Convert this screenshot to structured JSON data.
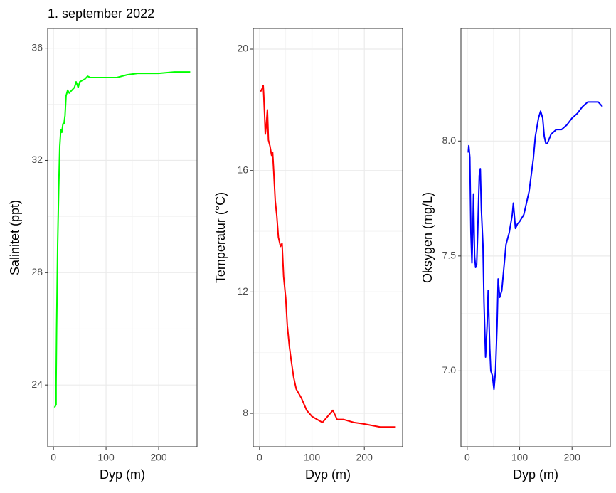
{
  "chart_data": [
    {
      "type": "line",
      "title": "1. september 2022",
      "x_label": "Dyp (m)",
      "y_label": "Salinitet (ppt)",
      "color": "#00ff00",
      "x": [
        2,
        5,
        5,
        6,
        7,
        8,
        10,
        12,
        14,
        16,
        18,
        20,
        22,
        24,
        27,
        30,
        35,
        40,
        43,
        47,
        50,
        55,
        60,
        65,
        70,
        100,
        120,
        140,
        160,
        200,
        230,
        260
      ],
      "values": [
        23.2,
        23.3,
        24,
        26,
        27.5,
        29,
        31,
        32.5,
        33.1,
        33,
        33.3,
        33.3,
        33.6,
        34.3,
        34.5,
        34.4,
        34.5,
        34.6,
        34.8,
        34.6,
        34.8,
        34.85,
        34.9,
        35,
        34.95,
        34.95,
        34.95,
        35.05,
        35.1,
        35.1,
        35.15,
        35.15
      ],
      "xlim": [
        -11,
        273
      ],
      "xticks": [
        0,
        100,
        200
      ],
      "ylim": [
        21.8,
        36.7
      ],
      "yticks": [
        24,
        28,
        32,
        36
      ],
      "grid": true
    },
    {
      "type": "line",
      "x_label": "Dyp (m)",
      "y_label": "Temperatur (°C)",
      "color": "#ff0000",
      "x": [
        2,
        5,
        7,
        8,
        10,
        11,
        13,
        15,
        17,
        20,
        23,
        25,
        27,
        30,
        33,
        36,
        40,
        43,
        46,
        50,
        53,
        57,
        60,
        65,
        70,
        80,
        90,
        100,
        110,
        120,
        130,
        140,
        148,
        160,
        180,
        200,
        230,
        260
      ],
      "values": [
        18.6,
        18.7,
        18.8,
        18.5,
        17.7,
        17.2,
        17.5,
        18,
        17,
        16.8,
        16.5,
        16.6,
        16,
        15,
        14.5,
        13.8,
        13.5,
        13.6,
        12.5,
        11.8,
        10.9,
        10.2,
        9.8,
        9.2,
        8.8,
        8.5,
        8.1,
        7.9,
        7.8,
        7.7,
        7.9,
        8.1,
        7.8,
        7.8,
        7.7,
        7.65,
        7.55,
        7.55
      ],
      "xlim": [
        -12,
        273
      ],
      "xticks": [
        0,
        100,
        200
      ],
      "ylim": [
        6.9,
        20.68
      ],
      "yticks": [
        8,
        12,
        16,
        20
      ],
      "grid": true
    },
    {
      "type": "line",
      "x_label": "Dyp (m)",
      "y_label": "Oksygen (mg/L)",
      "color": "#0000ff",
      "x": [
        2,
        3,
        5,
        7,
        9,
        11,
        12,
        14,
        16,
        18,
        20,
        23,
        25,
        27,
        30,
        32,
        35,
        38,
        40,
        43,
        45,
        48,
        51,
        54,
        57,
        59,
        62,
        66,
        70,
        74,
        80,
        86,
        88,
        92,
        96,
        100,
        108,
        112,
        118,
        122,
        126,
        130,
        136,
        140,
        144,
        147,
        150,
        153,
        160,
        170,
        180,
        190,
        200,
        210,
        220,
        230,
        240,
        250,
        258
      ],
      "values": [
        7.95,
        7.98,
        7.93,
        7.6,
        7.47,
        7.65,
        7.77,
        7.5,
        7.45,
        7.46,
        7.6,
        7.85,
        7.88,
        7.7,
        7.55,
        7.3,
        7.06,
        7.2,
        7.35,
        7.1,
        7.0,
        6.98,
        6.92,
        7.0,
        7.2,
        7.4,
        7.32,
        7.35,
        7.45,
        7.55,
        7.6,
        7.68,
        7.73,
        7.62,
        7.64,
        7.65,
        7.68,
        7.72,
        7.78,
        7.85,
        7.92,
        8.02,
        8.1,
        8.13,
        8.1,
        8.02,
        7.99,
        7.99,
        8.03,
        8.05,
        8.05,
        8.07,
        8.1,
        8.12,
        8.15,
        8.17,
        8.17,
        8.17,
        8.15
      ],
      "xlim": [
        -12,
        273
      ],
      "xticks": [
        0,
        100,
        200
      ],
      "ylim": [
        6.67,
        8.49
      ],
      "yticks": [
        {
          "value": 7,
          "label": "7.0"
        },
        7.5,
        {
          "value": 8,
          "label": "8.0"
        }
      ],
      "grid": true
    }
  ]
}
